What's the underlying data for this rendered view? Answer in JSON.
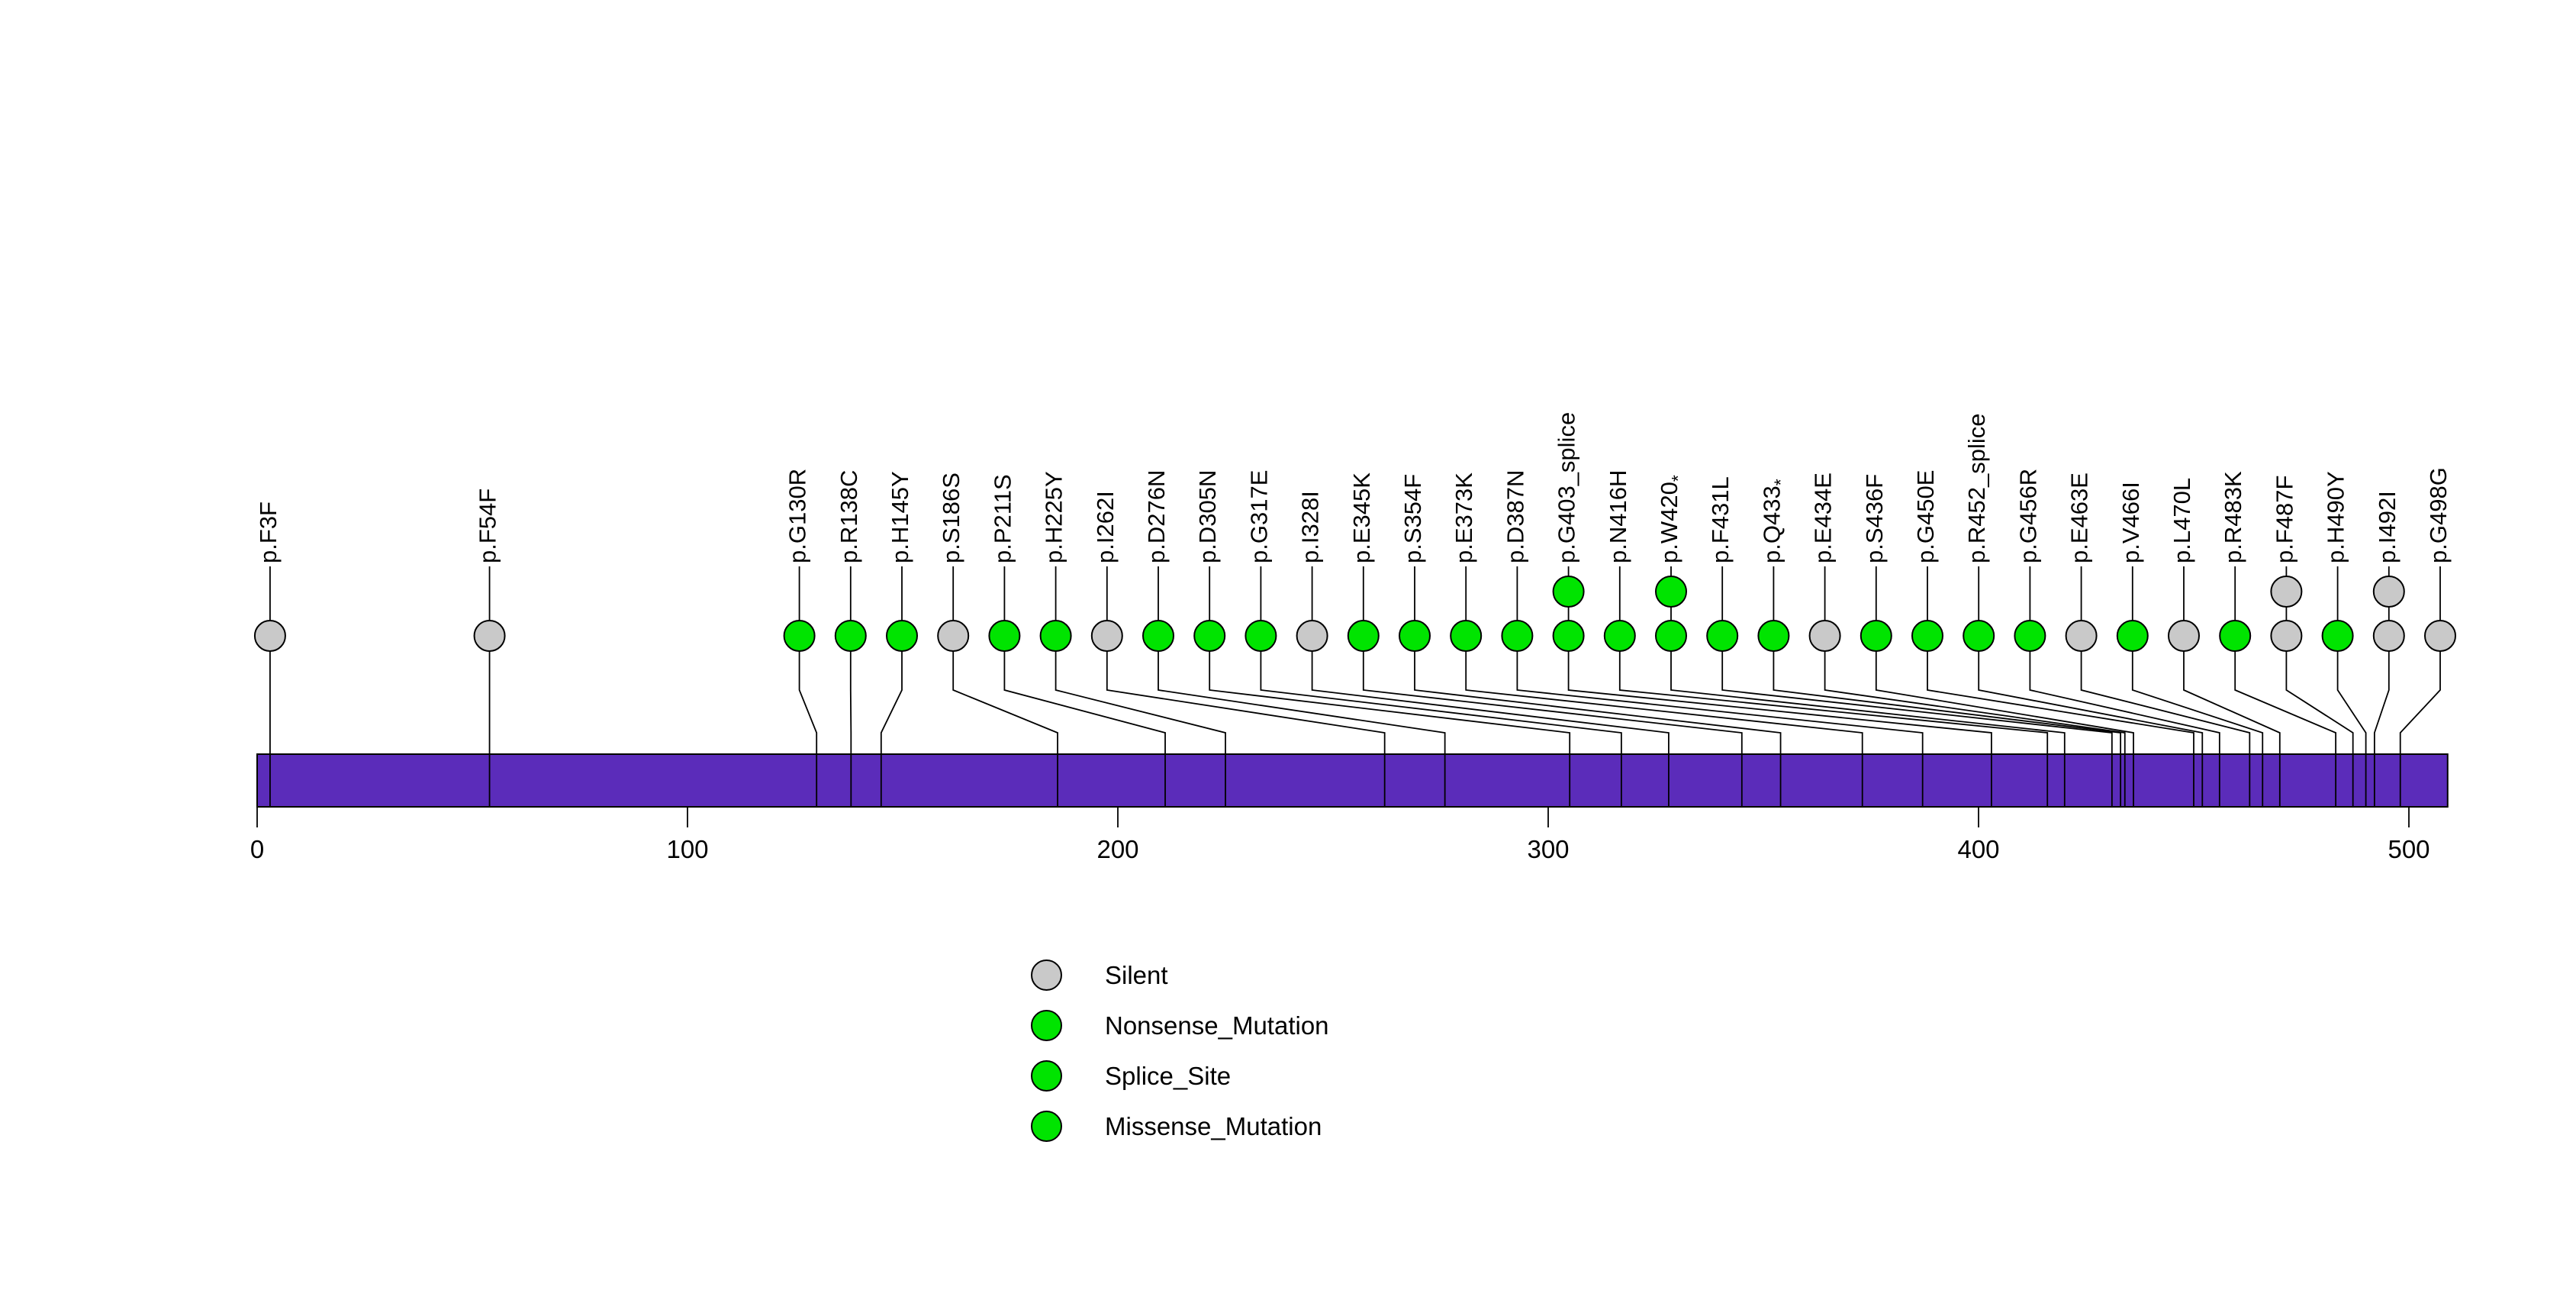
{
  "chart_data": {
    "type": "lollipop",
    "gene_bar": {
      "start": 0,
      "end": 509,
      "color": "#5B2CBA",
      "border_color": "#000000"
    },
    "x_axis": {
      "ticks": [
        0,
        100,
        200,
        300,
        400,
        500
      ]
    },
    "colors": {
      "Silent": "#C9C9C9",
      "Nonsense_Mutation": "#00E400",
      "Splice_Site": "#00E400",
      "Missense_Mutation": "#00E400",
      "stroke": "#000000"
    },
    "legend": [
      {
        "label": "Silent",
        "type": "Silent"
      },
      {
        "label": "Nonsense_Mutation",
        "type": "Nonsense_Mutation"
      },
      {
        "label": "Splice_Site",
        "type": "Splice_Site"
      },
      {
        "label": "Missense_Mutation",
        "type": "Missense_Mutation"
      }
    ],
    "mutations": [
      {
        "label": "p.F3F",
        "position": 3,
        "type": "Silent",
        "count": 1
      },
      {
        "label": "p.F54F",
        "position": 54,
        "type": "Silent",
        "count": 1
      },
      {
        "label": "p.G130R",
        "position": 130,
        "type": "Missense_Mutation",
        "count": 1
      },
      {
        "label": "p.R138C",
        "position": 138,
        "type": "Missense_Mutation",
        "count": 1
      },
      {
        "label": "p.H145Y",
        "position": 145,
        "type": "Missense_Mutation",
        "count": 1
      },
      {
        "label": "p.S186S",
        "position": 186,
        "type": "Silent",
        "count": 1
      },
      {
        "label": "p.P211S",
        "position": 211,
        "type": "Missense_Mutation",
        "count": 1
      },
      {
        "label": "p.H225Y",
        "position": 225,
        "type": "Missense_Mutation",
        "count": 1
      },
      {
        "label": "p.I262I",
        "position": 262,
        "type": "Silent",
        "count": 1
      },
      {
        "label": "p.D276N",
        "position": 276,
        "type": "Missense_Mutation",
        "count": 1
      },
      {
        "label": "p.D305N",
        "position": 305,
        "type": "Missense_Mutation",
        "count": 1
      },
      {
        "label": "p.G317E",
        "position": 317,
        "type": "Missense_Mutation",
        "count": 1
      },
      {
        "label": "p.I328I",
        "position": 328,
        "type": "Silent",
        "count": 1
      },
      {
        "label": "p.E345K",
        "position": 345,
        "type": "Missense_Mutation",
        "count": 1
      },
      {
        "label": "p.S354F",
        "position": 354,
        "type": "Missense_Mutation",
        "count": 1
      },
      {
        "label": "p.E373K",
        "position": 373,
        "type": "Missense_Mutation",
        "count": 1
      },
      {
        "label": "p.D387N",
        "position": 387,
        "type": "Missense_Mutation",
        "count": 1
      },
      {
        "label": "p.G403_splice",
        "position": 403,
        "type": "Splice_Site",
        "count": 2
      },
      {
        "label": "p.N416H",
        "position": 416,
        "type": "Missense_Mutation",
        "count": 1
      },
      {
        "label": "p.W420*",
        "position": 420,
        "type": "Nonsense_Mutation",
        "count": 2
      },
      {
        "label": "p.F431L",
        "position": 431,
        "type": "Missense_Mutation",
        "count": 1
      },
      {
        "label": "p.Q433*",
        "position": 433,
        "type": "Nonsense_Mutation",
        "count": 1
      },
      {
        "label": "p.E434E",
        "position": 434,
        "type": "Silent",
        "count": 1
      },
      {
        "label": "p.S436F",
        "position": 436,
        "type": "Missense_Mutation",
        "count": 1
      },
      {
        "label": "p.G450E",
        "position": 450,
        "type": "Missense_Mutation",
        "count": 1
      },
      {
        "label": "p.R452_splice",
        "position": 452,
        "type": "Splice_Site",
        "count": 1
      },
      {
        "label": "p.G456R",
        "position": 456,
        "type": "Missense_Mutation",
        "count": 1
      },
      {
        "label": "p.E463E",
        "position": 463,
        "type": "Silent",
        "count": 1
      },
      {
        "label": "p.V466I",
        "position": 466,
        "type": "Missense_Mutation",
        "count": 1
      },
      {
        "label": "p.L470L",
        "position": 470,
        "type": "Silent",
        "count": 1
      },
      {
        "label": "p.R483K",
        "position": 483,
        "type": "Missense_Mutation",
        "count": 1
      },
      {
        "label": "p.F487F",
        "position": 487,
        "type": "Silent",
        "count": 2
      },
      {
        "label": "p.H490Y",
        "position": 490,
        "type": "Missense_Mutation",
        "count": 1
      },
      {
        "label": "p.I492I",
        "position": 492,
        "type": "Silent",
        "count": 2
      },
      {
        "label": "p.G498G",
        "position": 498,
        "type": "Silent",
        "count": 1
      }
    ]
  }
}
